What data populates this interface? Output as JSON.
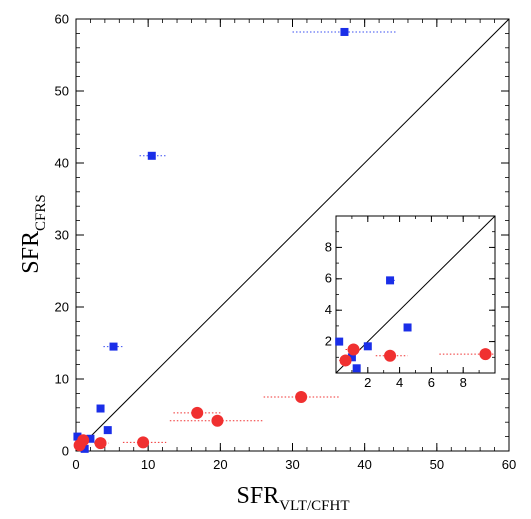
{
  "chart_data": [
    {
      "type": "scatter",
      "title": "",
      "xlabel": "SFR",
      "xlabel_sub": "VLT/CFHT",
      "ylabel": "SFR",
      "ylabel_sub": "CFRS",
      "xlim": [
        0,
        60
      ],
      "ylim": [
        0,
        60
      ],
      "x_ticks": [
        0,
        10,
        20,
        30,
        40,
        50,
        60
      ],
      "y_ticks": [
        0,
        10,
        20,
        30,
        40,
        50,
        60
      ],
      "diagonal": "y = x",
      "grid": false,
      "series": [
        {
          "marker": "square",
          "color": "#1a2ee8",
          "error_color": "#3a4ff2",
          "points": [
            {
              "x": 37.2,
              "y": 58.2,
              "xerr_lo": 30.0,
              "xerr_hi": 44.5
            },
            {
              "x": 10.5,
              "y": 41.0,
              "xerr_lo": 8.8,
              "xerr_hi": 12.5
            },
            {
              "x": 5.2,
              "y": 14.5,
              "xerr_lo": 3.8,
              "xerr_hi": 6.5
            },
            {
              "x": 3.4,
              "y": 5.9,
              "xerr_lo": null,
              "xerr_hi": null
            },
            {
              "x": 4.4,
              "y": 2.9,
              "xerr_lo": null,
              "xerr_hi": null
            },
            {
              "x": 0.2,
              "y": 2.0,
              "xerr_lo": null,
              "xerr_hi": null
            },
            {
              "x": 2.0,
              "y": 1.7,
              "xerr_lo": null,
              "xerr_hi": null
            },
            {
              "x": 0.9,
              "y": 1.0,
              "xerr_lo": null,
              "xerr_hi": null
            },
            {
              "x": 1.2,
              "y": 0.3,
              "xerr_lo": null,
              "xerr_hi": null
            }
          ]
        },
        {
          "marker": "circle",
          "color": "#f03030",
          "error_color": "#f03030",
          "points": [
            {
              "x": 31.2,
              "y": 7.5,
              "xerr_lo": 26.0,
              "xerr_hi": 36.5
            },
            {
              "x": 16.8,
              "y": 5.3,
              "xerr_lo": 13.5,
              "xerr_hi": 20.0
            },
            {
              "x": 19.6,
              "y": 4.2,
              "xerr_lo": 13.0,
              "xerr_hi": 26.0
            },
            {
              "x": 9.3,
              "y": 1.2,
              "xerr_lo": 6.5,
              "xerr_hi": 12.5
            },
            {
              "x": 3.4,
              "y": 1.1,
              "xerr_lo": 2.5,
              "xerr_hi": 4.5
            },
            {
              "x": 1.0,
              "y": 1.5,
              "xerr_lo": 0.5,
              "xerr_hi": 1.6
            },
            {
              "x": 0.5,
              "y": 0.8,
              "xerr_lo": 0.2,
              "xerr_hi": 0.8
            }
          ]
        }
      ]
    },
    {
      "type": "scatter",
      "inset": true,
      "title": "",
      "xlim": [
        0,
        10
      ],
      "ylim": [
        0,
        10
      ],
      "x_ticks": [
        2,
        4,
        6,
        8
      ],
      "y_ticks": [
        2,
        4,
        6,
        8
      ],
      "diagonal": "y = x",
      "grid": false,
      "series": [
        {
          "marker": "square",
          "color": "#1a2ee8",
          "error_color": "#3a4ff2",
          "points": [
            {
              "x": 3.4,
              "y": 5.9,
              "xerr_lo": 3.2,
              "xerr_hi": 3.7
            },
            {
              "x": 4.5,
              "y": 2.9,
              "xerr_lo": null,
              "xerr_hi": null
            },
            {
              "x": 0.2,
              "y": 2.0,
              "xerr_lo": null,
              "xerr_hi": null
            },
            {
              "x": 2.0,
              "y": 1.7,
              "xerr_lo": null,
              "xerr_hi": null
            },
            {
              "x": 1.0,
              "y": 1.0,
              "xerr_lo": null,
              "xerr_hi": null
            },
            {
              "x": 1.3,
              "y": 0.3,
              "xerr_lo": null,
              "xerr_hi": null
            }
          ]
        },
        {
          "marker": "circle",
          "color": "#f03030",
          "error_color": "#f03030",
          "points": [
            {
              "x": 9.4,
              "y": 1.2,
              "xerr_lo": 6.5,
              "xerr_hi": 9.9
            },
            {
              "x": 3.4,
              "y": 1.1,
              "xerr_lo": 2.5,
              "xerr_hi": 4.5
            },
            {
              "x": 1.1,
              "y": 1.5,
              "xerr_lo": 0.6,
              "xerr_hi": 1.6
            },
            {
              "x": 0.6,
              "y": 0.8,
              "xerr_lo": 0.2,
              "xerr_hi": 0.9
            }
          ]
        }
      ]
    }
  ]
}
